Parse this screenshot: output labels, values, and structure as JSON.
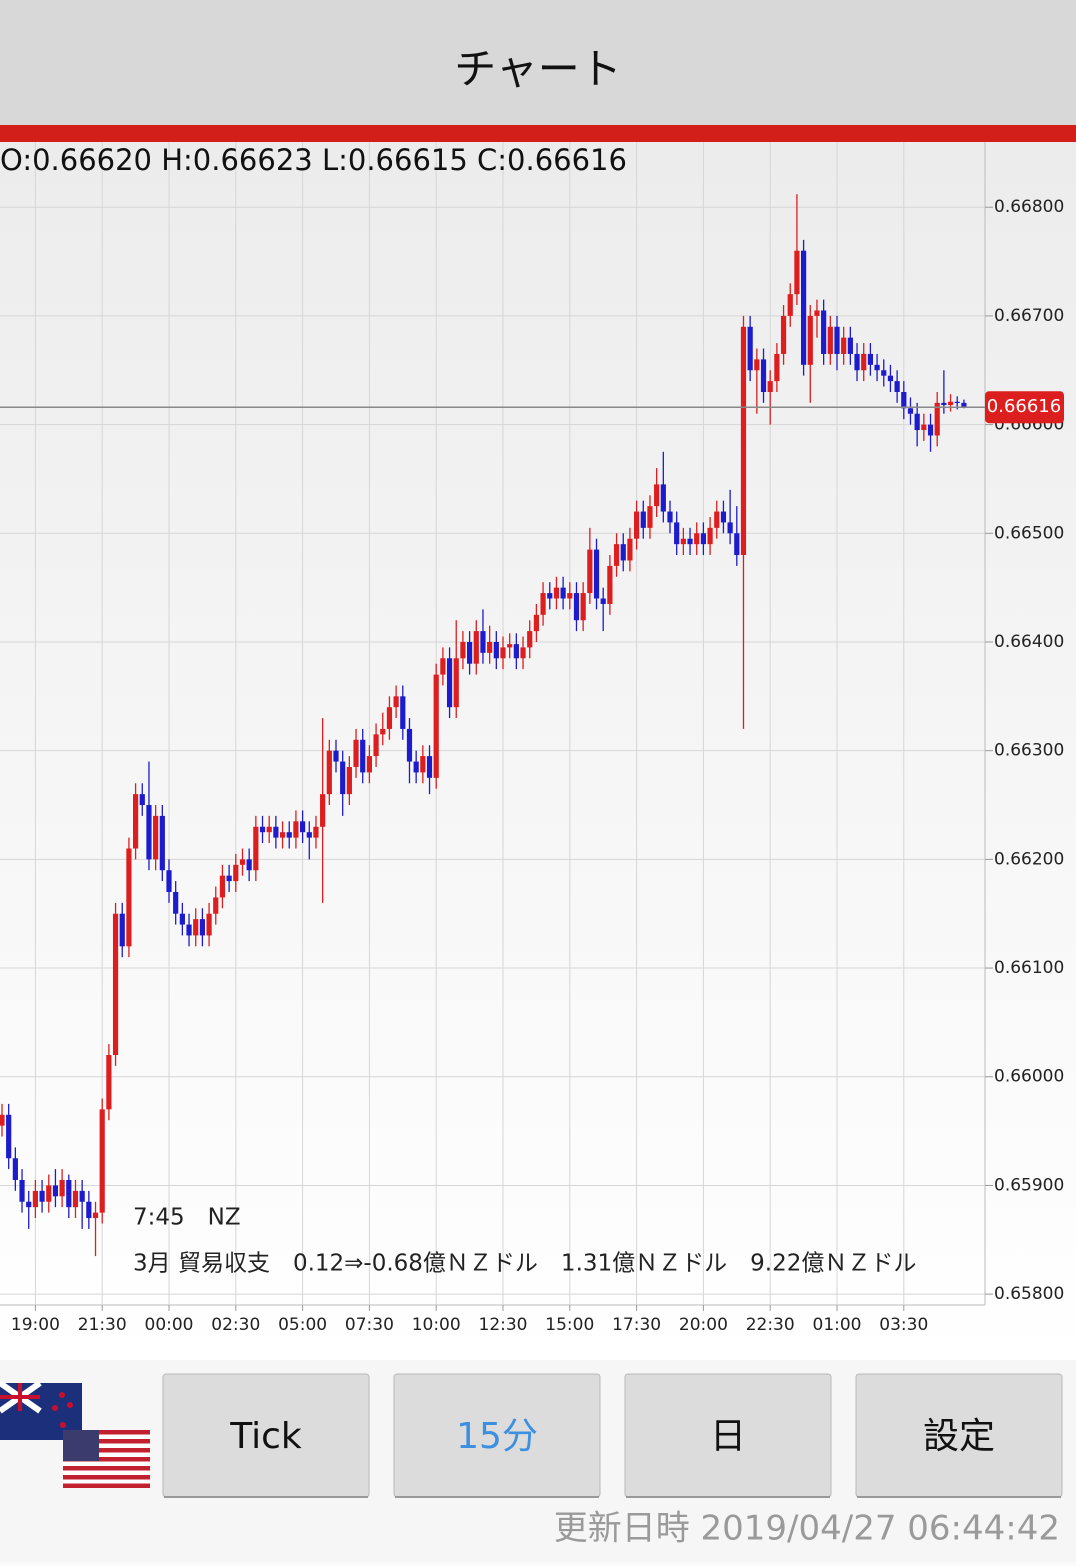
{
  "header": {
    "title": "チャート"
  },
  "chart_data": {
    "type": "candlestick",
    "ohlc_label": "O:0.66620 H:0.66623 L:0.66615 C:0.66616",
    "categories": [
      null,
      null,
      null,
      null,
      null,
      "19:00",
      null,
      null,
      null,
      null,
      null,
      null,
      null,
      null,
      null,
      "21:30",
      null,
      null,
      null,
      null,
      null,
      null,
      null,
      null,
      null,
      "00:00",
      null,
      null,
      null,
      null,
      null,
      null,
      null,
      null,
      null,
      "02:30",
      null,
      null,
      null,
      null,
      null,
      null,
      null,
      null,
      null,
      "05:00",
      null,
      null,
      null,
      null,
      null,
      null,
      null,
      null,
      null,
      "07:30",
      null,
      null,
      null,
      null,
      null,
      null,
      null,
      null,
      null,
      "10:00",
      null,
      null,
      null,
      null,
      null,
      null,
      null,
      null,
      null,
      "12:30",
      null,
      null,
      null,
      null,
      null,
      null,
      null,
      null,
      null,
      "15:00",
      null,
      null,
      null,
      null,
      null,
      null,
      null,
      null,
      null,
      "17:30",
      null,
      null,
      null,
      null,
      null,
      null,
      null,
      null,
      null,
      "20:00",
      null,
      null,
      null,
      null,
      null,
      null,
      null,
      null,
      null,
      "22:30",
      null,
      null,
      null,
      null,
      null,
      null,
      null,
      null,
      null,
      "01:00",
      null,
      null,
      null,
      null,
      null,
      null,
      null,
      null,
      null,
      "03:30",
      null,
      null,
      null,
      null,
      null,
      null,
      null,
      null,
      null
    ],
    "open": [
      0.65955,
      0.65965,
      0.65925,
      0.65905,
      0.65885,
      0.6588,
      0.65895,
      0.65885,
      0.659,
      0.6589,
      0.65905,
      0.6588,
      0.65895,
      0.65885,
      0.6587,
      0.65875,
      0.6597,
      0.6602,
      0.6615,
      0.6612,
      0.6621,
      0.6626,
      0.6625,
      0.662,
      0.6624,
      0.6619,
      0.6617,
      0.6615,
      0.6614,
      0.6613,
      0.66145,
      0.6613,
      0.6615,
      0.66165,
      0.66185,
      0.6618,
      0.66195,
      0.662,
      0.6619,
      0.6623,
      0.66225,
      0.6623,
      0.6622,
      0.66225,
      0.6622,
      0.66235,
      0.66225,
      0.6622,
      0.6623,
      0.6626,
      0.663,
      0.6629,
      0.6626,
      0.66285,
      0.6631,
      0.6628,
      0.66295,
      0.66315,
      0.6632,
      0.6634,
      0.6635,
      0.6632,
      0.6629,
      0.6628,
      0.66295,
      0.66275,
      0.6637,
      0.66385,
      0.6634,
      0.66385,
      0.664,
      0.6638,
      0.6641,
      0.6639,
      0.664,
      0.66385,
      0.66395,
      0.66398,
      0.66385,
      0.66395,
      0.6641,
      0.66425,
      0.66445,
      0.6644,
      0.6645,
      0.6644,
      0.66445,
      0.6642,
      0.66445,
      0.66485,
      0.6644,
      0.66435,
      0.6647,
      0.6649,
      0.66475,
      0.66495,
      0.6652,
      0.66505,
      0.66525,
      0.66545,
      0.6652,
      0.6651,
      0.6649,
      0.66495,
      0.6649,
      0.665,
      0.6649,
      0.66505,
      0.6652,
      0.6651,
      0.665,
      0.6648,
      0.6669,
      0.6665,
      0.6666,
      0.6663,
      0.6664,
      0.66665,
      0.667,
      0.6672,
      0.6676,
      0.66655,
      0.667,
      0.66705,
      0.66665,
      0.6669,
      0.66665,
      0.6668,
      0.66665,
      0.6665,
      0.66665,
      0.66655,
      0.6665,
      0.66645,
      0.6664,
      0.6663,
      0.66615,
      0.6661,
      0.66595,
      0.666,
      0.6659,
      0.6662,
      0.66618,
      0.66621,
      0.6662
    ],
    "high": [
      0.65975,
      0.65975,
      0.65935,
      0.65915,
      0.65895,
      0.65905,
      0.65905,
      0.6591,
      0.65915,
      0.65915,
      0.6591,
      0.65905,
      0.65905,
      0.65895,
      0.65885,
      0.6598,
      0.6603,
      0.6616,
      0.6616,
      0.6622,
      0.6627,
      0.6627,
      0.6629,
      0.6625,
      0.6625,
      0.662,
      0.6618,
      0.6616,
      0.6615,
      0.66155,
      0.66155,
      0.6616,
      0.66175,
      0.66195,
      0.66195,
      0.66205,
      0.6621,
      0.6621,
      0.6624,
      0.6624,
      0.6624,
      0.6624,
      0.66235,
      0.66235,
      0.66245,
      0.66245,
      0.66235,
      0.6624,
      0.6633,
      0.6631,
      0.6631,
      0.663,
      0.66295,
      0.6632,
      0.6632,
      0.66305,
      0.66325,
      0.66335,
      0.6635,
      0.6636,
      0.6636,
      0.6633,
      0.663,
      0.66305,
      0.66305,
      0.6638,
      0.66395,
      0.66395,
      0.6642,
      0.6641,
      0.6641,
      0.6642,
      0.6643,
      0.66415,
      0.6641,
      0.66405,
      0.66408,
      0.66408,
      0.66405,
      0.6642,
      0.66435,
      0.66455,
      0.66455,
      0.6646,
      0.6646,
      0.66455,
      0.66455,
      0.66455,
      0.66505,
      0.66495,
      0.6645,
      0.6648,
      0.665,
      0.665,
      0.66505,
      0.6653,
      0.6653,
      0.66535,
      0.6656,
      0.66575,
      0.6653,
      0.6652,
      0.66505,
      0.66505,
      0.6651,
      0.6651,
      0.66515,
      0.6653,
      0.6653,
      0.6654,
      0.66525,
      0.667,
      0.667,
      0.6667,
      0.6667,
      0.6665,
      0.66675,
      0.6671,
      0.6673,
      0.66812,
      0.6677,
      0.6671,
      0.66715,
      0.66715,
      0.667,
      0.667,
      0.6669,
      0.6669,
      0.66675,
      0.66675,
      0.66675,
      0.66665,
      0.6666,
      0.66655,
      0.6665,
      0.6664,
      0.66625,
      0.6662,
      0.6661,
      0.6661,
      0.6663,
      0.6665,
      0.66628,
      0.66626,
      0.66623
    ],
    "low": [
      0.65945,
      0.65915,
      0.65895,
      0.65875,
      0.6586,
      0.6587,
      0.65875,
      0.65875,
      0.6588,
      0.6588,
      0.6587,
      0.6587,
      0.6586,
      0.6586,
      0.65835,
      0.65865,
      0.6596,
      0.6601,
      0.6611,
      0.6611,
      0.662,
      0.6624,
      0.6619,
      0.6619,
      0.6618,
      0.6616,
      0.6614,
      0.6613,
      0.6612,
      0.6612,
      0.6612,
      0.6612,
      0.6614,
      0.66155,
      0.6617,
      0.6617,
      0.66185,
      0.6618,
      0.6618,
      0.66215,
      0.66215,
      0.6621,
      0.6621,
      0.6621,
      0.6621,
      0.66215,
      0.662,
      0.6621,
      0.6616,
      0.6625,
      0.6628,
      0.6624,
      0.6625,
      0.66275,
      0.6627,
      0.6627,
      0.66285,
      0.66305,
      0.6631,
      0.6633,
      0.6631,
      0.6627,
      0.6627,
      0.6627,
      0.6626,
      0.66265,
      0.6636,
      0.6633,
      0.6633,
      0.66375,
      0.6637,
      0.6637,
      0.6638,
      0.6638,
      0.66375,
      0.66375,
      0.66385,
      0.66375,
      0.66375,
      0.66385,
      0.664,
      0.66415,
      0.6643,
      0.6643,
      0.6643,
      0.6643,
      0.6641,
      0.6641,
      0.66435,
      0.6643,
      0.6641,
      0.66425,
      0.6646,
      0.66465,
      0.66465,
      0.66485,
      0.66495,
      0.66495,
      0.66515,
      0.6651,
      0.665,
      0.6648,
      0.6648,
      0.6648,
      0.6648,
      0.6648,
      0.6648,
      0.66495,
      0.665,
      0.6649,
      0.6647,
      0.6632,
      0.6664,
      0.6661,
      0.6662,
      0.666,
      0.6663,
      0.66655,
      0.6669,
      0.6671,
      0.66645,
      0.6662,
      0.6668,
      0.66655,
      0.66655,
      0.6665,
      0.66655,
      0.66655,
      0.6664,
      0.6664,
      0.66645,
      0.6664,
      0.66635,
      0.6663,
      0.6662,
      0.66605,
      0.666,
      0.6658,
      0.66585,
      0.66575,
      0.6658,
      0.6661,
      0.66612,
      0.66614,
      0.66615
    ],
    "close": [
      0.65965,
      0.65925,
      0.65905,
      0.65885,
      0.6588,
      0.65895,
      0.65885,
      0.659,
      0.6589,
      0.65905,
      0.6588,
      0.65895,
      0.65885,
      0.6587,
      0.65875,
      0.6597,
      0.6602,
      0.6615,
      0.6612,
      0.6621,
      0.6626,
      0.6625,
      0.662,
      0.6624,
      0.6619,
      0.6617,
      0.6615,
      0.6614,
      0.6613,
      0.66145,
      0.6613,
      0.6615,
      0.66165,
      0.66185,
      0.6618,
      0.66195,
      0.662,
      0.6619,
      0.6623,
      0.66225,
      0.6623,
      0.6622,
      0.66225,
      0.6622,
      0.66235,
      0.66225,
      0.6622,
      0.6623,
      0.6626,
      0.663,
      0.6629,
      0.6626,
      0.66285,
      0.6631,
      0.6628,
      0.66295,
      0.66315,
      0.6632,
      0.6634,
      0.6635,
      0.6632,
      0.6629,
      0.6628,
      0.66295,
      0.66275,
      0.6637,
      0.66385,
      0.6634,
      0.66385,
      0.664,
      0.6638,
      0.6641,
      0.6639,
      0.664,
      0.66385,
      0.66395,
      0.66398,
      0.66385,
      0.66395,
      0.6641,
      0.66425,
      0.66445,
      0.6644,
      0.6645,
      0.6644,
      0.66445,
      0.6642,
      0.66445,
      0.66485,
      0.6644,
      0.66435,
      0.6647,
      0.6649,
      0.66475,
      0.66495,
      0.6652,
      0.66505,
      0.66525,
      0.66545,
      0.6652,
      0.6651,
      0.6649,
      0.66495,
      0.6649,
      0.665,
      0.6649,
      0.66505,
      0.6652,
      0.6651,
      0.665,
      0.6648,
      0.6669,
      0.6665,
      0.6666,
      0.6663,
      0.6664,
      0.66665,
      0.667,
      0.6672,
      0.6676,
      0.66655,
      0.667,
      0.66705,
      0.66665,
      0.6669,
      0.66665,
      0.6668,
      0.66665,
      0.6665,
      0.66665,
      0.66655,
      0.6665,
      0.66645,
      0.6664,
      0.6663,
      0.66615,
      0.6661,
      0.66595,
      0.666,
      0.6659,
      0.6662,
      0.66618,
      0.66621,
      0.6662,
      0.66616
    ],
    "up_color": "#dd1e1e",
    "down_color": "#1c1ccc",
    "ylim": [
      0.6579,
      0.6686
    ],
    "yticks": [
      {
        "value": 0.658,
        "label": "0.65800"
      },
      {
        "value": 0.659,
        "label": "0.65900"
      },
      {
        "value": 0.66,
        "label": "0.66000"
      },
      {
        "value": 0.661,
        "label": "0.66100"
      },
      {
        "value": 0.662,
        "label": "0.66200"
      },
      {
        "value": 0.663,
        "label": "0.66300"
      },
      {
        "value": 0.664,
        "label": "0.66400"
      },
      {
        "value": 0.665,
        "label": "0.66500"
      },
      {
        "value": 0.666,
        "label": "0.66600"
      },
      {
        "value": 0.667,
        "label": "0.66700"
      },
      {
        "value": 0.668,
        "label": "0.66800"
      }
    ],
    "grid": true,
    "current_price": 0.66616,
    "annotations": [
      "7:45　NZ",
      "3月 貿易収支　0.12⇒-0.68億ＮＺドル　1.31億ＮＺドル　9.22億ＮＺドル"
    ]
  },
  "buttons": [
    "Tick",
    "15分",
    "日",
    "設定"
  ],
  "footer": "更新日時 2019/04/27 06:44:42"
}
